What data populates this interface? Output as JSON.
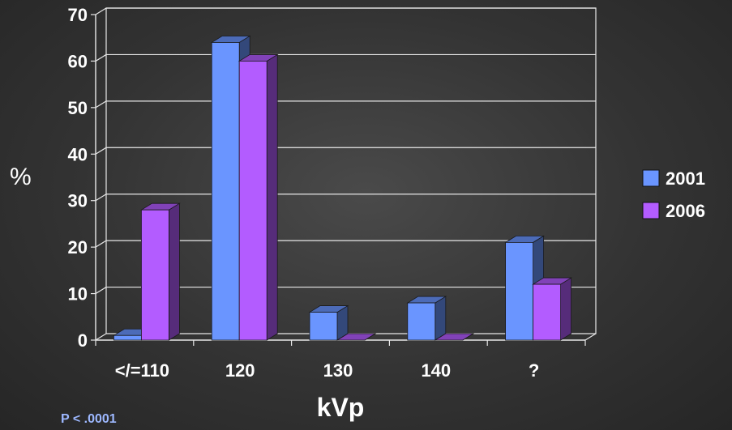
{
  "chart_data": {
    "type": "bar",
    "categories": [
      "</=110",
      "120",
      "130",
      "140",
      "?"
    ],
    "series": [
      {
        "name": "2001",
        "values": [
          1,
          64,
          6,
          8,
          21
        ],
        "color": "#6a95ff"
      },
      {
        "name": "2006",
        "values": [
          28,
          60,
          0,
          0,
          12
        ],
        "color": "#b35cff"
      }
    ],
    "xlabel": "kVp",
    "ylabel": "%",
    "ylim": [
      0,
      70
    ],
    "yticks": [
      0,
      10,
      20,
      30,
      40,
      50,
      60,
      70
    ],
    "grid": true,
    "legend": "right",
    "annotation": "P < .0001"
  }
}
